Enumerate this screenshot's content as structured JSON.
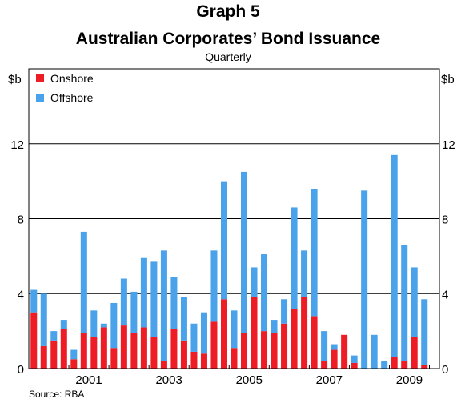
{
  "chart_data": {
    "type": "bar",
    "stacked": true,
    "title": "Graph 5",
    "subtitle": "Australian Corporates’ Bond Issuance",
    "frequency_label": "Quarterly",
    "units_left": "$b",
    "units_right": "$b",
    "ylim": [
      0,
      16
    ],
    "y_ticks": [
      0,
      4,
      8,
      12
    ],
    "year_labels": [
      "2001",
      "2003",
      "2005",
      "2007",
      "2009"
    ],
    "grid": true,
    "legend_position": "top-left",
    "source": "Source: RBA",
    "quarters": [
      "2000-Q1",
      "2000-Q2",
      "2000-Q3",
      "2000-Q4",
      "2001-Q1",
      "2001-Q2",
      "2001-Q3",
      "2001-Q4",
      "2002-Q1",
      "2002-Q2",
      "2002-Q3",
      "2002-Q4",
      "2003-Q1",
      "2003-Q2",
      "2003-Q3",
      "2003-Q4",
      "2004-Q1",
      "2004-Q2",
      "2004-Q3",
      "2004-Q4",
      "2005-Q1",
      "2005-Q2",
      "2005-Q3",
      "2005-Q4",
      "2006-Q1",
      "2006-Q2",
      "2006-Q3",
      "2006-Q4",
      "2007-Q1",
      "2007-Q2",
      "2007-Q3",
      "2007-Q4",
      "2008-Q1",
      "2008-Q2",
      "2008-Q3",
      "2008-Q4",
      "2009-Q1",
      "2009-Q2",
      "2009-Q3",
      "2009-Q4",
      "2010-Q1"
    ],
    "series": [
      {
        "name": "Onshore",
        "color": "#ee1c25",
        "values": [
          3.0,
          1.2,
          1.5,
          2.1,
          0.5,
          1.9,
          1.7,
          2.2,
          1.1,
          2.3,
          1.9,
          2.2,
          1.7,
          0.4,
          2.1,
          1.5,
          0.9,
          0.8,
          2.5,
          3.7,
          1.1,
          1.9,
          3.8,
          2.0,
          1.9,
          2.4,
          3.2,
          3.8,
          2.8,
          0.4,
          1.0,
          1.8,
          0.3,
          0.0,
          0.0,
          0.0,
          0.6,
          0.4,
          1.7,
          0.2,
          0.0
        ]
      },
      {
        "name": "Offshore",
        "color": "#4aa2ea",
        "values": [
          1.2,
          2.8,
          0.5,
          0.5,
          0.5,
          5.4,
          1.4,
          0.2,
          2.4,
          2.5,
          2.2,
          3.7,
          4.0,
          5.9,
          2.8,
          2.3,
          1.5,
          2.2,
          3.8,
          6.3,
          2.0,
          8.6,
          1.6,
          4.1,
          0.7,
          1.3,
          5.4,
          2.5,
          6.8,
          1.6,
          0.3,
          0.0,
          0.4,
          9.5,
          1.8,
          0.4,
          10.8,
          6.2,
          3.7,
          3.5,
          0.0
        ]
      }
    ]
  }
}
